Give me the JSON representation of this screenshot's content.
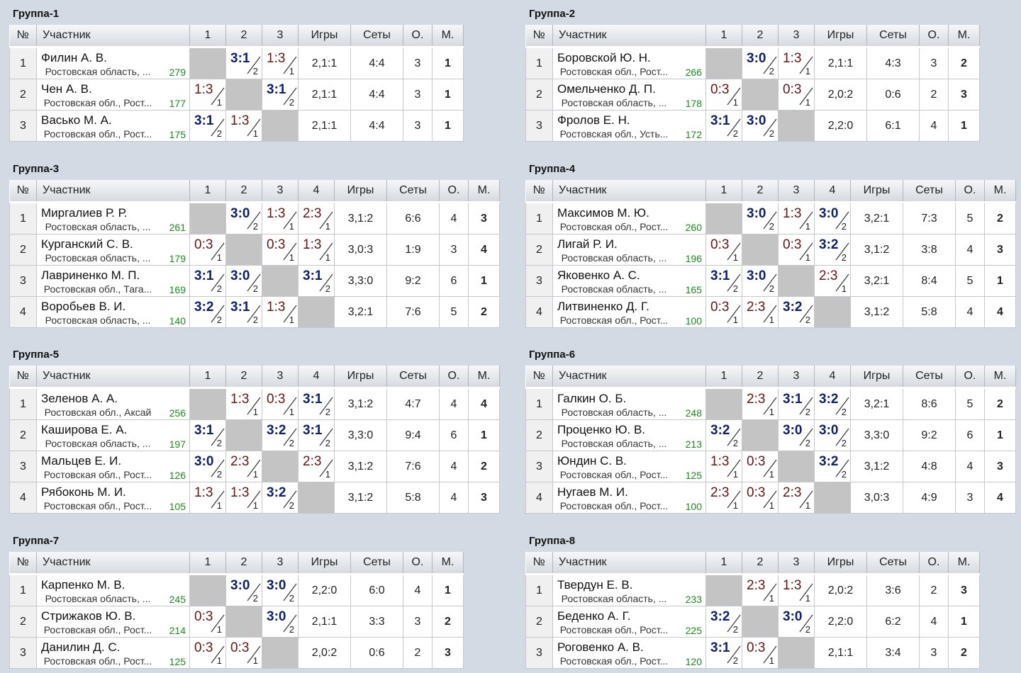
{
  "headers": {
    "num": "№",
    "participant": "Участник",
    "games": "Игры",
    "sets": "Сеты",
    "points": "О.",
    "place": "М."
  },
  "groups": [
    {
      "title": "Группа-1",
      "size": 3,
      "rows": [
        {
          "n": "1",
          "name": "Филин А. В.",
          "region": "Ростовская область, ...",
          "rating": "279",
          "cells": [
            "",
            "3:1",
            "1:3"
          ],
          "games": "2,1:1",
          "sets": "4:4",
          "points": "3",
          "place": "1"
        },
        {
          "n": "2",
          "name": "Чен А. В.",
          "region": "Ростовская обл., Рост...",
          "rating": "177",
          "cells": [
            "1:3",
            "",
            "3:1"
          ],
          "games": "2,1:1",
          "sets": "4:4",
          "points": "3",
          "place": "1"
        },
        {
          "n": "3",
          "name": "Васько М. А.",
          "region": "Ростовская обл., Рост...",
          "rating": "175",
          "cells": [
            "3:1",
            "1:3",
            ""
          ],
          "games": "2,1:1",
          "sets": "4:4",
          "points": "3",
          "place": "1"
        }
      ]
    },
    {
      "title": "Группа-2",
      "size": 3,
      "rows": [
        {
          "n": "1",
          "name": "Боровской Ю. Н.",
          "region": "Ростовская обл., Рост...",
          "rating": "266",
          "cells": [
            "",
            "3:0",
            "1:3"
          ],
          "games": "2,1:1",
          "sets": "4:3",
          "points": "3",
          "place": "2"
        },
        {
          "n": "2",
          "name": "Омельченко Д. П.",
          "region": "Ростовская область, ...",
          "rating": "178",
          "cells": [
            "0:3",
            "",
            "0:3"
          ],
          "games": "2,0:2",
          "sets": "0:6",
          "points": "2",
          "place": "3"
        },
        {
          "n": "3",
          "name": "Фролов Е. Н.",
          "region": "Ростовская обл., Усть...",
          "rating": "172",
          "cells": [
            "3:1",
            "3:0",
            ""
          ],
          "games": "2,2:0",
          "sets": "6:1",
          "points": "4",
          "place": "1"
        }
      ]
    },
    {
      "title": "Группа-3",
      "size": 4,
      "rows": [
        {
          "n": "1",
          "name": "Миргалиев Р. Р.",
          "region": "Ростовская область, ...",
          "rating": "261",
          "cells": [
            "",
            "3:0",
            "1:3",
            "2:3"
          ],
          "games": "3,1:2",
          "sets": "6:6",
          "points": "4",
          "place": "3"
        },
        {
          "n": "2",
          "name": "Курганский С. В.",
          "region": "Ростовская область, ...",
          "rating": "179",
          "cells": [
            "0:3",
            "",
            "0:3",
            "1:3"
          ],
          "games": "3,0:3",
          "sets": "1:9",
          "points": "3",
          "place": "4"
        },
        {
          "n": "3",
          "name": "Лавриненко М. П.",
          "region": "Ростовская обл., Тага...",
          "rating": "169",
          "cells": [
            "3:1",
            "3:0",
            "",
            "3:1"
          ],
          "games": "3,3:0",
          "sets": "9:2",
          "points": "6",
          "place": "1"
        },
        {
          "n": "4",
          "name": "Воробьев В. И.",
          "region": "Ростовская область, ...",
          "rating": "140",
          "cells": [
            "3:2",
            "3:1",
            "1:3",
            ""
          ],
          "games": "3,2:1",
          "sets": "7:6",
          "points": "5",
          "place": "2"
        }
      ]
    },
    {
      "title": "Группа-4",
      "size": 4,
      "rows": [
        {
          "n": "1",
          "name": "Максимов М. Ю.",
          "region": "Ростовская обл., Рост...",
          "rating": "260",
          "cells": [
            "",
            "3:0",
            "1:3",
            "3:0"
          ],
          "games": "3,2:1",
          "sets": "7:3",
          "points": "5",
          "place": "2"
        },
        {
          "n": "2",
          "name": "Лигай Р. И.",
          "region": "Ростовская область, ...",
          "rating": "196",
          "cells": [
            "0:3",
            "",
            "0:3",
            "3:2"
          ],
          "games": "3,1:2",
          "sets": "3:8",
          "points": "4",
          "place": "3"
        },
        {
          "n": "3",
          "name": "Яковенко А. С.",
          "region": "Ростовская область, ...",
          "rating": "165",
          "cells": [
            "3:1",
            "3:0",
            "",
            "2:3"
          ],
          "games": "3,2:1",
          "sets": "8:4",
          "points": "5",
          "place": "1"
        },
        {
          "n": "4",
          "name": "Литвиненко Д. Г.",
          "region": "Ростовская обл., Рост...",
          "rating": "100",
          "cells": [
            "0:3",
            "2:3",
            "3:2",
            ""
          ],
          "games": "3,1:2",
          "sets": "5:8",
          "points": "4",
          "place": "4"
        }
      ]
    },
    {
      "title": "Группа-5",
      "size": 4,
      "rows": [
        {
          "n": "1",
          "name": "Зеленов А. А.",
          "region": "Ростовская обл., Аксай",
          "rating": "256",
          "cells": [
            "",
            "1:3",
            "0:3",
            "3:1"
          ],
          "games": "3,1:2",
          "sets": "4:7",
          "points": "4",
          "place": "4"
        },
        {
          "n": "2",
          "name": "Каширова Е. А.",
          "region": "Ростовская область, ...",
          "rating": "197",
          "cells": [
            "3:1",
            "",
            "3:2",
            "3:1"
          ],
          "games": "3,3:0",
          "sets": "9:4",
          "points": "6",
          "place": "1"
        },
        {
          "n": "3",
          "name": "Мальцев Е. И.",
          "region": "Ростовская обл., Рост...",
          "rating": "126",
          "cells": [
            "3:0",
            "2:3",
            "",
            "2:3"
          ],
          "games": "3,1:2",
          "sets": "7:6",
          "points": "4",
          "place": "2"
        },
        {
          "n": "4",
          "name": "Рябоконь М. И.",
          "region": "Ростовская обл., Рост...",
          "rating": "105",
          "cells": [
            "1:3",
            "1:3",
            "3:2",
            ""
          ],
          "games": "3,1:2",
          "sets": "5:8",
          "points": "4",
          "place": "3"
        }
      ]
    },
    {
      "title": "Группа-6",
      "size": 4,
      "rows": [
        {
          "n": "1",
          "name": "Галкин О. Б.",
          "region": "Ростовская область, ...",
          "rating": "248",
          "cells": [
            "",
            "2:3",
            "3:1",
            "3:2"
          ],
          "games": "3,2:1",
          "sets": "8:6",
          "points": "5",
          "place": "2"
        },
        {
          "n": "2",
          "name": "Проценко Ю. В.",
          "region": "Ростовская область, ...",
          "rating": "213",
          "cells": [
            "3:2",
            "",
            "3:0",
            "3:0"
          ],
          "games": "3,3:0",
          "sets": "9:2",
          "points": "6",
          "place": "1"
        },
        {
          "n": "3",
          "name": "Юндин С. В.",
          "region": "Ростовская обл., Рост...",
          "rating": "125",
          "cells": [
            "1:3",
            "0:3",
            "",
            "3:2"
          ],
          "games": "3,1:2",
          "sets": "4:8",
          "points": "4",
          "place": "3"
        },
        {
          "n": "4",
          "name": "Нугаев М. И.",
          "region": "Ростовская обл., Рост...",
          "rating": "100",
          "cells": [
            "2:3",
            "0:3",
            "2:3",
            ""
          ],
          "games": "3,0:3",
          "sets": "4:9",
          "points": "3",
          "place": "4"
        }
      ]
    },
    {
      "title": "Группа-7",
      "size": 3,
      "rows": [
        {
          "n": "1",
          "name": "Карпенко М. В.",
          "region": "Ростовская область, ...",
          "rating": "245",
          "cells": [
            "",
            "3:0",
            "3:0"
          ],
          "games": "2,2:0",
          "sets": "6:0",
          "points": "4",
          "place": "1"
        },
        {
          "n": "2",
          "name": "Стрижаков Ю. В.",
          "region": "Ростовская обл., Рост...",
          "rating": "214",
          "cells": [
            "0:3",
            "",
            "3:0"
          ],
          "games": "2,1:1",
          "sets": "3:3",
          "points": "3",
          "place": "2"
        },
        {
          "n": "3",
          "name": "Данилин Д. С.",
          "region": "Ростовская обл., Рост...",
          "rating": "125",
          "cells": [
            "0:3",
            "0:3",
            ""
          ],
          "games": "2,0:2",
          "sets": "0:6",
          "points": "2",
          "place": "3"
        }
      ]
    },
    {
      "title": "Группа-8",
      "size": 3,
      "rows": [
        {
          "n": "1",
          "name": "Твердун Е. В.",
          "region": "Ростовская область, ...",
          "rating": "233",
          "cells": [
            "",
            "2:3",
            "1:3"
          ],
          "games": "2,0:2",
          "sets": "3:6",
          "points": "2",
          "place": "3"
        },
        {
          "n": "2",
          "name": "Беденко А. Г.",
          "region": "Ростовская обл., Рост...",
          "rating": "225",
          "cells": [
            "3:2",
            "",
            "3:0"
          ],
          "games": "2,2:0",
          "sets": "6:2",
          "points": "4",
          "place": "1"
        },
        {
          "n": "3",
          "name": "Роговенко А. В.",
          "region": "Ростовская обл., Рост...",
          "rating": "120",
          "cells": [
            "3:1",
            "0:3",
            ""
          ],
          "games": "2,1:1",
          "sets": "3:4",
          "points": "3",
          "place": "2"
        }
      ]
    }
  ]
}
